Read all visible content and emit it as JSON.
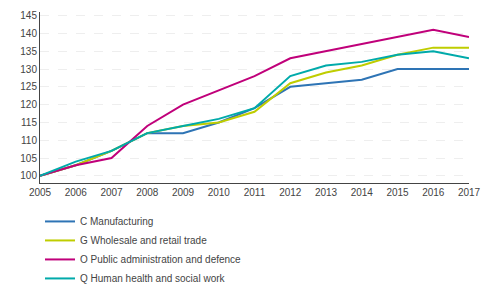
{
  "chart_data": {
    "type": "line",
    "x": [
      2005,
      2006,
      2007,
      2008,
      2009,
      2010,
      2011,
      2012,
      2013,
      2014,
      2015,
      2016,
      2017
    ],
    "series": [
      {
        "name": "C Manufacturing",
        "color": "#2E74B5",
        "values": [
          100,
          103,
          107,
          112,
          112,
          115,
          119,
          125,
          126,
          127,
          130,
          130,
          130
        ]
      },
      {
        "name": "G Wholesale and retail trade",
        "color": "#BFCD00",
        "values": [
          100,
          103,
          107,
          112,
          114,
          115,
          118,
          126,
          129,
          131,
          134,
          136,
          136
        ]
      },
      {
        "name": "O Public administration and defence",
        "color": "#C0007A",
        "values": [
          100,
          103,
          105,
          114,
          120,
          124,
          128,
          133,
          135,
          137,
          139,
          141,
          139
        ]
      },
      {
        "name": "Q Human health and social work",
        "color": "#00AAAA",
        "values": [
          100,
          104,
          107,
          112,
          114,
          116,
          119,
          128,
          131,
          132,
          134,
          135,
          133
        ]
      }
    ],
    "xlim": [
      2005,
      2017
    ],
    "xticks": [
      2005,
      2006,
      2007,
      2008,
      2009,
      2010,
      2011,
      2012,
      2013,
      2014,
      2015,
      2016,
      2017
    ],
    "ylim": [
      98,
      146
    ],
    "yticks": [
      100,
      105,
      110,
      115,
      120,
      125,
      130,
      135,
      140,
      145
    ],
    "grid": true,
    "legend": "bottom"
  }
}
